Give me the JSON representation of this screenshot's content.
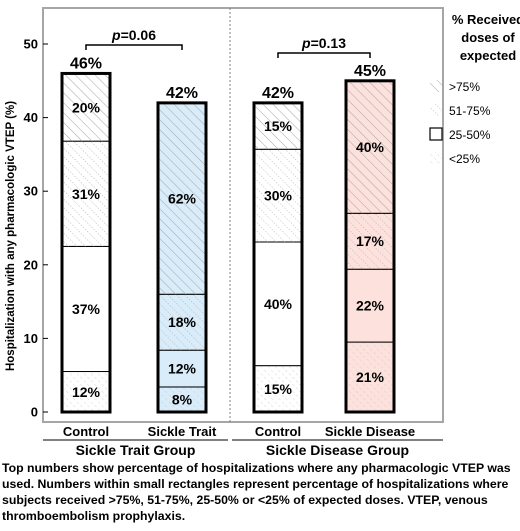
{
  "chart_data": {
    "type": "bar",
    "stacked": true,
    "ylabel": "Hospitalization with any pharmacologic VTEP (%)",
    "ylim": [
      0,
      50
    ],
    "yticks": [
      0,
      10,
      20,
      30,
      40,
      50
    ],
    "grid": false,
    "legend_position": "right",
    "legend_title": "% Received doses of expected",
    "legend_lines": [
      "% Received",
      "doses of",
      "expected"
    ],
    "segment_order": [
      "<25%",
      "25-50%",
      "51-75%",
      ">75%"
    ],
    "legend_items": [
      {
        "label": ">75%",
        "pattern": "dense-diagonal"
      },
      {
        "label": "51-75%",
        "pattern": "light-diagonal"
      },
      {
        "label": "25-50%",
        "pattern": "solid"
      },
      {
        "label": "<25%",
        "pattern": "dotted"
      }
    ],
    "colors": {
      "trait": "#d9ecf9",
      "disease": "#fde1dc",
      "control": "#ffffff",
      "frame": "#a6a6a6",
      "divider": "#808080"
    },
    "groups": [
      {
        "label": "Sickle Trait Group",
        "categories": [
          "Control",
          "Sickle Trait"
        ],
        "pvalue_label": "p",
        "pvalue": "=0.06"
      },
      {
        "label": "Sickle Disease Group",
        "categories": [
          "Control",
          "Sickle Disease"
        ],
        "pvalue_label": "p",
        "pvalue": "=0.13"
      }
    ],
    "bars": [
      {
        "category": "Control",
        "group": 0,
        "total": 46,
        "total_label": "46%",
        "fill": "control",
        "segments": [
          {
            "band": "<25%",
            "value": 5.5,
            "label": "12%"
          },
          {
            "band": "25-50%",
            "value": 17.0,
            "label": "37%"
          },
          {
            "band": "51-75%",
            "value": 14.3,
            "label": "31%"
          },
          {
            "band": ">75%",
            "value": 9.2,
            "label": "20%"
          }
        ]
      },
      {
        "category": "Sickle Trait",
        "group": 0,
        "total": 42,
        "total_label": "42%",
        "fill": "trait",
        "segments": [
          {
            "band": "<25%",
            "value": 3.4,
            "label": "8%"
          },
          {
            "band": "25-50%",
            "value": 5.0,
            "label": "12%"
          },
          {
            "band": "51-75%",
            "value": 7.6,
            "label": "18%"
          },
          {
            "band": ">75%",
            "value": 26.0,
            "label": "62%"
          }
        ]
      },
      {
        "category": "Control",
        "group": 1,
        "total": 42,
        "total_label": "42%",
        "fill": "control",
        "segments": [
          {
            "band": "<25%",
            "value": 6.3,
            "label": "15%"
          },
          {
            "band": "25-50%",
            "value": 16.8,
            "label": "40%"
          },
          {
            "band": "51-75%",
            "value": 12.6,
            "label": "30%"
          },
          {
            "band": ">75%",
            "value": 6.3,
            "label": "15%"
          }
        ]
      },
      {
        "category": "Sickle Disease",
        "group": 1,
        "total": 45,
        "total_label": "45%",
        "fill": "disease",
        "segments": [
          {
            "band": "<25%",
            "value": 9.5,
            "label": "21%"
          },
          {
            "band": "25-50%",
            "value": 9.9,
            "label": "22%"
          },
          {
            "band": "51-75%",
            "value": 7.6,
            "label": "17%"
          },
          {
            "band": ">75%",
            "value": 18.0,
            "label": "40%"
          }
        ]
      }
    ]
  },
  "caption": "Top numbers show percentage of hospitalizations where any pharmacologic VTEP was used. Numbers within small rectangles represent percentage of hospitalizations where subjects received >75%, 51-75%, 25-50% or <25% of expected doses. VTEP, venous thromboembolism prophylaxis."
}
